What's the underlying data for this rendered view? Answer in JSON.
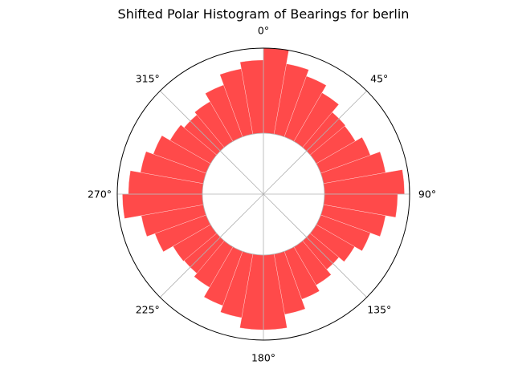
{
  "chart_data": {
    "type": "bar",
    "polar": true,
    "title": "Shifted Polar Histogram of Bearings for berlin",
    "theta_zero_location": "N",
    "theta_direction": "clockwise",
    "bar_color": "#ff4040",
    "bar_opacity": 0.95,
    "grid": true,
    "angular_ticks": [
      {
        "angle": 0,
        "label": "0°"
      },
      {
        "angle": 45,
        "label": "45°"
      },
      {
        "angle": 90,
        "label": "90°"
      },
      {
        "angle": 135,
        "label": "135°"
      },
      {
        "angle": 180,
        "label": "180°"
      },
      {
        "angle": 225,
        "label": "225°"
      },
      {
        "angle": 270,
        "label": "270°"
      },
      {
        "angle": 315,
        "label": "315°"
      }
    ],
    "bins": [
      {
        "start": 0,
        "end": 10,
        "value": 1.0
      },
      {
        "start": 10,
        "end": 20,
        "value": 0.84
      },
      {
        "start": 20,
        "end": 30,
        "value": 0.76
      },
      {
        "start": 30,
        "end": 40,
        "value": 0.66
      },
      {
        "start": 40,
        "end": 50,
        "value": 0.54
      },
      {
        "start": 50,
        "end": 60,
        "value": 0.53
      },
      {
        "start": 60,
        "end": 70,
        "value": 0.62
      },
      {
        "start": 70,
        "end": 80,
        "value": 0.74
      },
      {
        "start": 80,
        "end": 90,
        "value": 0.94
      },
      {
        "start": 90,
        "end": 100,
        "value": 0.86
      },
      {
        "start": 100,
        "end": 110,
        "value": 0.74
      },
      {
        "start": 110,
        "end": 120,
        "value": 0.62
      },
      {
        "start": 120,
        "end": 130,
        "value": 0.52
      },
      {
        "start": 130,
        "end": 140,
        "value": 0.44
      },
      {
        "start": 140,
        "end": 150,
        "value": 0.52
      },
      {
        "start": 150,
        "end": 160,
        "value": 0.6
      },
      {
        "start": 160,
        "end": 170,
        "value": 0.72
      },
      {
        "start": 170,
        "end": 180,
        "value": 0.88
      },
      {
        "start": 180,
        "end": 190,
        "value": 0.88
      },
      {
        "start": 190,
        "end": 200,
        "value": 0.76
      },
      {
        "start": 200,
        "end": 210,
        "value": 0.68
      },
      {
        "start": 210,
        "end": 220,
        "value": 0.55
      },
      {
        "start": 220,
        "end": 230,
        "value": 0.5
      },
      {
        "start": 230,
        "end": 240,
        "value": 0.51
      },
      {
        "start": 240,
        "end": 250,
        "value": 0.64
      },
      {
        "start": 250,
        "end": 260,
        "value": 0.74
      },
      {
        "start": 260,
        "end": 270,
        "value": 0.94
      },
      {
        "start": 270,
        "end": 280,
        "value": 0.87
      },
      {
        "start": 280,
        "end": 290,
        "value": 0.75
      },
      {
        "start": 290,
        "end": 300,
        "value": 0.66
      },
      {
        "start": 300,
        "end": 310,
        "value": 0.55
      },
      {
        "start": 310,
        "end": 320,
        "value": 0.5
      },
      {
        "start": 320,
        "end": 330,
        "value": 0.54
      },
      {
        "start": 330,
        "end": 340,
        "value": 0.65
      },
      {
        "start": 340,
        "end": 350,
        "value": 0.78
      },
      {
        "start": 350,
        "end": 360,
        "value": 0.86
      }
    ]
  }
}
